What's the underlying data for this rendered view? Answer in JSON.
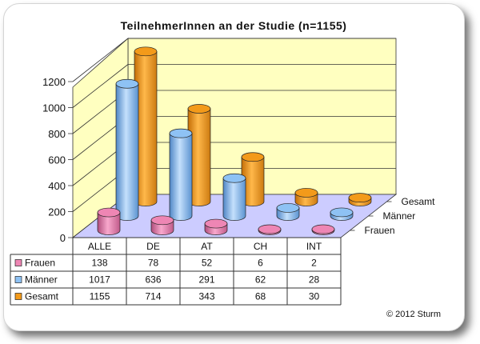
{
  "chart_data": {
    "type": "bar",
    "title": "TeilnehmerInnen an der Studie   (n=1155)",
    "categories": [
      "ALLE",
      "DE",
      "AT",
      "CH",
      "INT"
    ],
    "series": [
      {
        "name": "Frauen",
        "values": [
          138,
          78,
          52,
          6,
          2
        ],
        "color": "#ee86b4"
      },
      {
        "name": "Männer",
        "values": [
          1017,
          636,
          291,
          62,
          28
        ],
        "color": "#8ec2f4"
      },
      {
        "name": "Gesamt",
        "values": [
          1155,
          714,
          343,
          68,
          30
        ],
        "color": "#f39a1a"
      }
    ],
    "ylim": [
      0,
      1200
    ],
    "yticks": [
      0,
      200,
      400,
      600,
      800,
      1000,
      1200
    ],
    "grid": true,
    "wall_color": "#ffffc0",
    "floor_color": "#ccccff"
  },
  "copyright": "© 2012 Sturm"
}
